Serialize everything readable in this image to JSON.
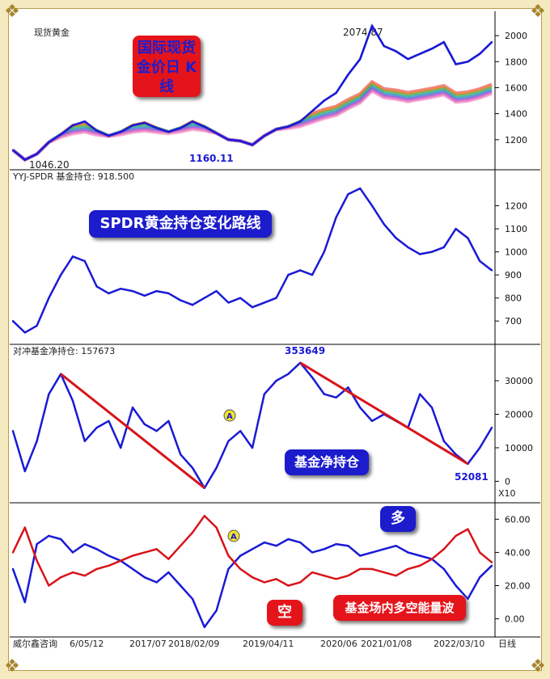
{
  "chart_data": [
    {
      "type": "line",
      "title": "现货黄金",
      "annotation": "国际现货金价日 K线",
      "series": [
        {
          "name": "",
          "x": [
            0,
            1,
            2,
            3,
            4,
            5,
            6,
            7,
            8,
            9,
            10,
            11,
            12,
            13,
            14,
            15,
            16,
            17,
            18,
            19,
            20,
            21,
            22,
            23,
            24,
            25,
            26,
            27,
            28,
            29,
            30,
            31,
            32,
            33,
            34,
            35,
            36,
            37,
            38,
            39,
            40
          ],
          "values": [
            1120,
            1046.2,
            1090,
            1180,
            1240,
            1310,
            1340,
            1270,
            1230,
            1260,
            1310,
            1330,
            1290,
            1260,
            1290,
            1340,
            1300,
            1250,
            1200,
            1190,
            1160.11,
            1230,
            1280,
            1300,
            1340,
            1420,
            1500,
            1560,
            1700,
            1820,
            2074.87,
            1920,
            1880,
            1820,
            1860,
            1900,
            1950,
            1780,
            1800,
            1860,
            1950
          ]
        }
      ],
      "ylim": [
        1000,
        2100
      ],
      "yticks": [
        1200,
        1400,
        1600,
        1800,
        2000
      ],
      "labels": {
        "high": "2074.87",
        "low": "1046.20",
        "mid": "1160.11"
      }
    },
    {
      "type": "line",
      "title": "YYJ-SPDR 基金持仓: 918.500",
      "annotation": "SPDR黄金持仓变化路线",
      "series": [
        {
          "name": "",
          "x": [
            0,
            1,
            2,
            3,
            4,
            5,
            6,
            7,
            8,
            9,
            10,
            11,
            12,
            13,
            14,
            15,
            16,
            17,
            18,
            19,
            20,
            21,
            22,
            23,
            24,
            25,
            26,
            27,
            28,
            29,
            30,
            31,
            32,
            33,
            34,
            35,
            36,
            37,
            38,
            39,
            40
          ],
          "values": [
            700,
            650,
            680,
            800,
            900,
            980,
            960,
            850,
            820,
            840,
            830,
            810,
            830,
            820,
            790,
            770,
            800,
            830,
            780,
            800,
            760,
            780,
            800,
            900,
            920,
            900,
            1000,
            1150,
            1250,
            1275,
            1200,
            1120,
            1060,
            1020,
            990,
            1000,
            1020,
            1100,
            1060,
            960,
            920
          ]
        }
      ],
      "ylim": [
        620,
        1300
      ],
      "yticks": [
        700,
        800,
        900,
        1000,
        1100,
        1200
      ]
    },
    {
      "type": "line",
      "title": "对冲基金净持仓: 157673",
      "annotation": "基金净持仓",
      "unit": "X10",
      "series": [
        {
          "name": "",
          "x": [
            0,
            1,
            2,
            3,
            4,
            5,
            6,
            7,
            8,
            9,
            10,
            11,
            12,
            13,
            14,
            15,
            16,
            17,
            18,
            19,
            20,
            21,
            22,
            23,
            24,
            25,
            26,
            27,
            28,
            29,
            30,
            31,
            32,
            33,
            34,
            35,
            36,
            37,
            38,
            39,
            40
          ],
          "values": [
            15000,
            3000,
            12000,
            26000,
            32000,
            24000,
            12000,
            16000,
            18000,
            10000,
            22000,
            17000,
            15000,
            18000,
            8000,
            4000,
            -2000,
            4000,
            12000,
            15000,
            10000,
            26000,
            30000,
            32000,
            35364.9,
            31000,
            26000,
            25000,
            28000,
            22000,
            18000,
            20000,
            18000,
            16000,
            26000,
            22000,
            12000,
            8000,
            5208.1,
            10000,
            16000
          ]
        }
      ],
      "ylim": [
        -4000,
        37000
      ],
      "yticks": [
        0,
        10000,
        20000,
        30000
      ],
      "labels": {
        "high": "353649",
        "low": "52081"
      }
    },
    {
      "type": "line",
      "title": "",
      "annotation": "基金场内多空能量波",
      "legend": [
        "多",
        "空"
      ],
      "series": [
        {
          "name": "多",
          "x": [
            0,
            1,
            2,
            3,
            4,
            5,
            6,
            7,
            8,
            9,
            10,
            11,
            12,
            13,
            14,
            15,
            16,
            17,
            18,
            19,
            20,
            21,
            22,
            23,
            24,
            25,
            26,
            27,
            28,
            29,
            30,
            31,
            32,
            33,
            34,
            35,
            36,
            37,
            38,
            39,
            40
          ],
          "values": [
            30,
            10,
            45,
            50,
            48,
            40,
            45,
            42,
            38,
            35,
            30,
            25,
            22,
            28,
            20,
            12,
            -5,
            5,
            30,
            38,
            42,
            46,
            44,
            48,
            46,
            40,
            42,
            45,
            44,
            38,
            40,
            42,
            44,
            40,
            38,
            36,
            30,
            20,
            12,
            25,
            32
          ]
        },
        {
          "name": "空",
          "x": [
            0,
            1,
            2,
            3,
            4,
            5,
            6,
            7,
            8,
            9,
            10,
            11,
            12,
            13,
            14,
            15,
            16,
            17,
            18,
            19,
            20,
            21,
            22,
            23,
            24,
            25,
            26,
            27,
            28,
            29,
            30,
            31,
            32,
            33,
            34,
            35,
            36,
            37,
            38,
            39,
            40
          ],
          "values": [
            40,
            55,
            35,
            20,
            25,
            28,
            26,
            30,
            32,
            35,
            38,
            40,
            42,
            36,
            44,
            52,
            62,
            55,
            38,
            30,
            25,
            22,
            24,
            20,
            22,
            28,
            26,
            24,
            26,
            30,
            30,
            28,
            26,
            30,
            32,
            36,
            42,
            50,
            54,
            40,
            34
          ]
        }
      ],
      "ylim": [
        -8,
        66
      ],
      "yticks": [
        0.0,
        20.0,
        40.0,
        60.0
      ]
    }
  ],
  "tick_labels": {
    "right_top": [
      "1200",
      "1400",
      "1600",
      "1800",
      "2000"
    ],
    "right_spdr": [
      "700",
      "800",
      "900",
      "1000",
      "1100",
      "1200"
    ],
    "right_net": [
      "0",
      "10000",
      "20000",
      "30000"
    ],
    "right_energy": [
      "0.00",
      "20.00",
      "40.00",
      "60.00"
    ]
  },
  "x_axis": {
    "source": "威尔鑫咨询",
    "dates": [
      "6/05/12",
      "2017/07",
      "2018/02/09",
      "2019/04/11",
      "2020/06",
      "2021/01/08",
      "2022/03/10"
    ],
    "period": "日线"
  },
  "colors": {
    "price": "#1a1ad6",
    "trend": "#d8141a",
    "accent": "#e5141b",
    "badge_blue": "#1c1ccc"
  }
}
